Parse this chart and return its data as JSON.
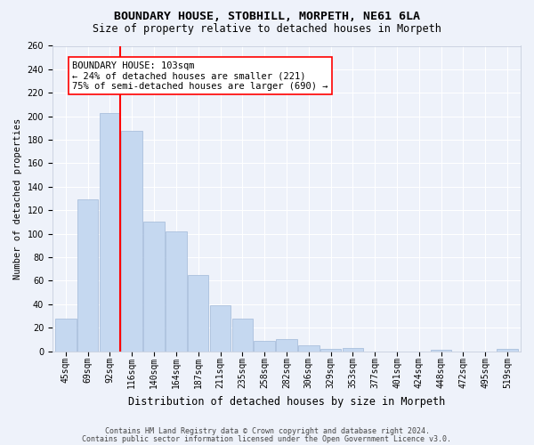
{
  "title": "BOUNDARY HOUSE, STOBHILL, MORPETH, NE61 6LA",
  "subtitle": "Size of property relative to detached houses in Morpeth",
  "xlabel": "Distribution of detached houses by size in Morpeth",
  "ylabel": "Number of detached properties",
  "footer_line1": "Contains HM Land Registry data © Crown copyright and database right 2024.",
  "footer_line2": "Contains public sector information licensed under the Open Government Licence v3.0.",
  "categories": [
    "45sqm",
    "69sqm",
    "92sqm",
    "116sqm",
    "140sqm",
    "164sqm",
    "187sqm",
    "211sqm",
    "235sqm",
    "258sqm",
    "282sqm",
    "306sqm",
    "329sqm",
    "353sqm",
    "377sqm",
    "401sqm",
    "424sqm",
    "448sqm",
    "472sqm",
    "495sqm",
    "519sqm"
  ],
  "values": [
    28,
    129,
    203,
    188,
    110,
    102,
    65,
    39,
    28,
    9,
    10,
    5,
    2,
    3,
    0,
    0,
    0,
    1,
    0,
    0,
    2
  ],
  "bar_color": "#c5d8f0",
  "bar_edge_color": "#a0b8d8",
  "vline_color": "red",
  "annotation_line1": "BOUNDARY HOUSE: 103sqm",
  "annotation_line2": "← 24% of detached houses are smaller (221)",
  "annotation_line3": "75% of semi-detached houses are larger (690) →",
  "annotation_box_color": "white",
  "annotation_box_edge": "red",
  "background_color": "#eef2fa",
  "grid_color": "white",
  "ylim": [
    0,
    260
  ],
  "yticks": [
    0,
    20,
    40,
    60,
    80,
    100,
    120,
    140,
    160,
    180,
    200,
    220,
    240,
    260
  ],
  "title_fontsize": 9.5,
  "subtitle_fontsize": 8.5,
  "xlabel_fontsize": 8.5,
  "ylabel_fontsize": 7.5,
  "tick_fontsize": 7,
  "annotation_fontsize": 7.5,
  "footer_fontsize": 6
}
